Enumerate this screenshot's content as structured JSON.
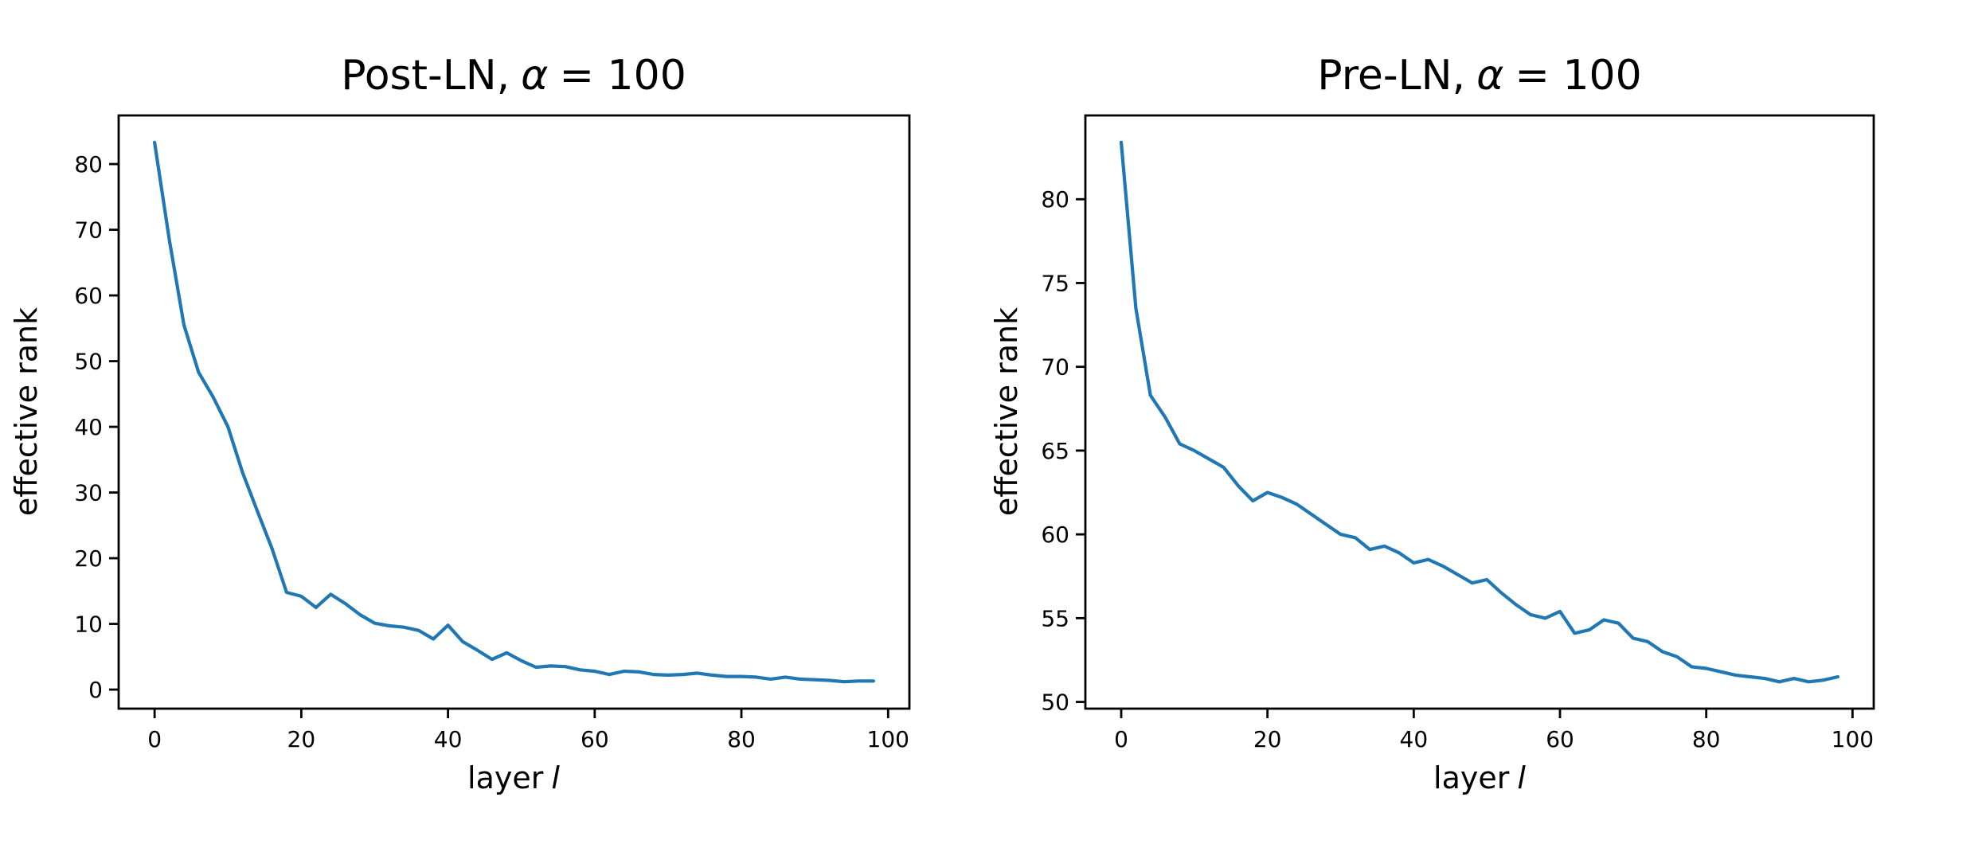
{
  "figure": {
    "background": "#ffffff",
    "line_color": "#1f77b4",
    "text_color": "#000000"
  },
  "chart_data": [
    {
      "type": "line",
      "title": {
        "prefix": "Post-LN,",
        "alpha": "α",
        "suffix": "= 100"
      },
      "xlabel": {
        "prefix": "layer",
        "italic": "l"
      },
      "ylabel": "effective rank",
      "xticks": [
        0,
        20,
        40,
        60,
        80,
        100
      ],
      "yticks": [
        0,
        10,
        20,
        30,
        40,
        50,
        60,
        70,
        80
      ],
      "xlim": [
        -4.9,
        102.9
      ],
      "ylim": [
        -2.9,
        87.4
      ],
      "grid": false,
      "legend": null,
      "x": [
        0,
        2,
        4,
        6,
        8,
        10,
        12,
        14,
        16,
        18,
        20,
        22,
        24,
        26,
        28,
        30,
        32,
        34,
        36,
        38,
        40,
        42,
        44,
        46,
        48,
        50,
        52,
        54,
        56,
        58,
        60,
        62,
        64,
        66,
        68,
        70,
        72,
        74,
        76,
        78,
        80,
        82,
        84,
        86,
        88,
        90,
        92,
        94,
        96,
        98
      ],
      "y": [
        83.3,
        68.5,
        55.5,
        48.3,
        44.5,
        40.0,
        33.0,
        27.2,
        21.5,
        14.8,
        14.2,
        12.5,
        14.5,
        13.1,
        11.4,
        10.1,
        9.7,
        9.5,
        9.0,
        7.7,
        9.8,
        7.3,
        6.0,
        4.6,
        5.6,
        4.4,
        3.4,
        3.6,
        3.5,
        3.0,
        2.8,
        2.3,
        2.8,
        2.7,
        2.3,
        2.2,
        2.3,
        2.5,
        2.2,
        2.0,
        2.0,
        1.9,
        1.6,
        1.9,
        1.6,
        1.5,
        1.4,
        1.2,
        1.3,
        1.3
      ]
    },
    {
      "type": "line",
      "title": {
        "prefix": "Pre-LN,",
        "alpha": "α",
        "suffix": "= 100"
      },
      "xlabel": {
        "prefix": "layer",
        "italic": "l"
      },
      "ylabel": "effective rank",
      "xticks": [
        0,
        20,
        40,
        60,
        80,
        100
      ],
      "yticks": [
        50,
        55,
        60,
        65,
        70,
        75,
        80
      ],
      "xlim": [
        -4.9,
        102.9
      ],
      "ylim": [
        49.6,
        85.0
      ],
      "grid": false,
      "legend": null,
      "x": [
        0,
        2,
        4,
        6,
        8,
        10,
        12,
        14,
        16,
        18,
        20,
        22,
        24,
        26,
        28,
        30,
        32,
        34,
        36,
        38,
        40,
        42,
        44,
        46,
        48,
        50,
        52,
        54,
        56,
        58,
        60,
        62,
        64,
        66,
        68,
        70,
        72,
        74,
        76,
        78,
        80,
        82,
        84,
        86,
        88,
        90,
        92,
        94,
        96,
        98
      ],
      "y": [
        83.4,
        73.5,
        68.3,
        67.0,
        65.4,
        65.0,
        64.5,
        64.0,
        62.9,
        62.0,
        62.5,
        62.2,
        61.8,
        61.2,
        60.6,
        60.0,
        59.8,
        59.1,
        59.3,
        58.9,
        58.3,
        58.5,
        58.1,
        57.6,
        57.1,
        57.3,
        56.5,
        55.8,
        55.2,
        55.0,
        55.4,
        54.1,
        54.3,
        54.9,
        54.7,
        53.8,
        53.6,
        53.0,
        52.7,
        52.1,
        52.0,
        51.8,
        51.6,
        51.5,
        51.4,
        51.2,
        51.4,
        51.2,
        51.3,
        51.5
      ]
    }
  ]
}
